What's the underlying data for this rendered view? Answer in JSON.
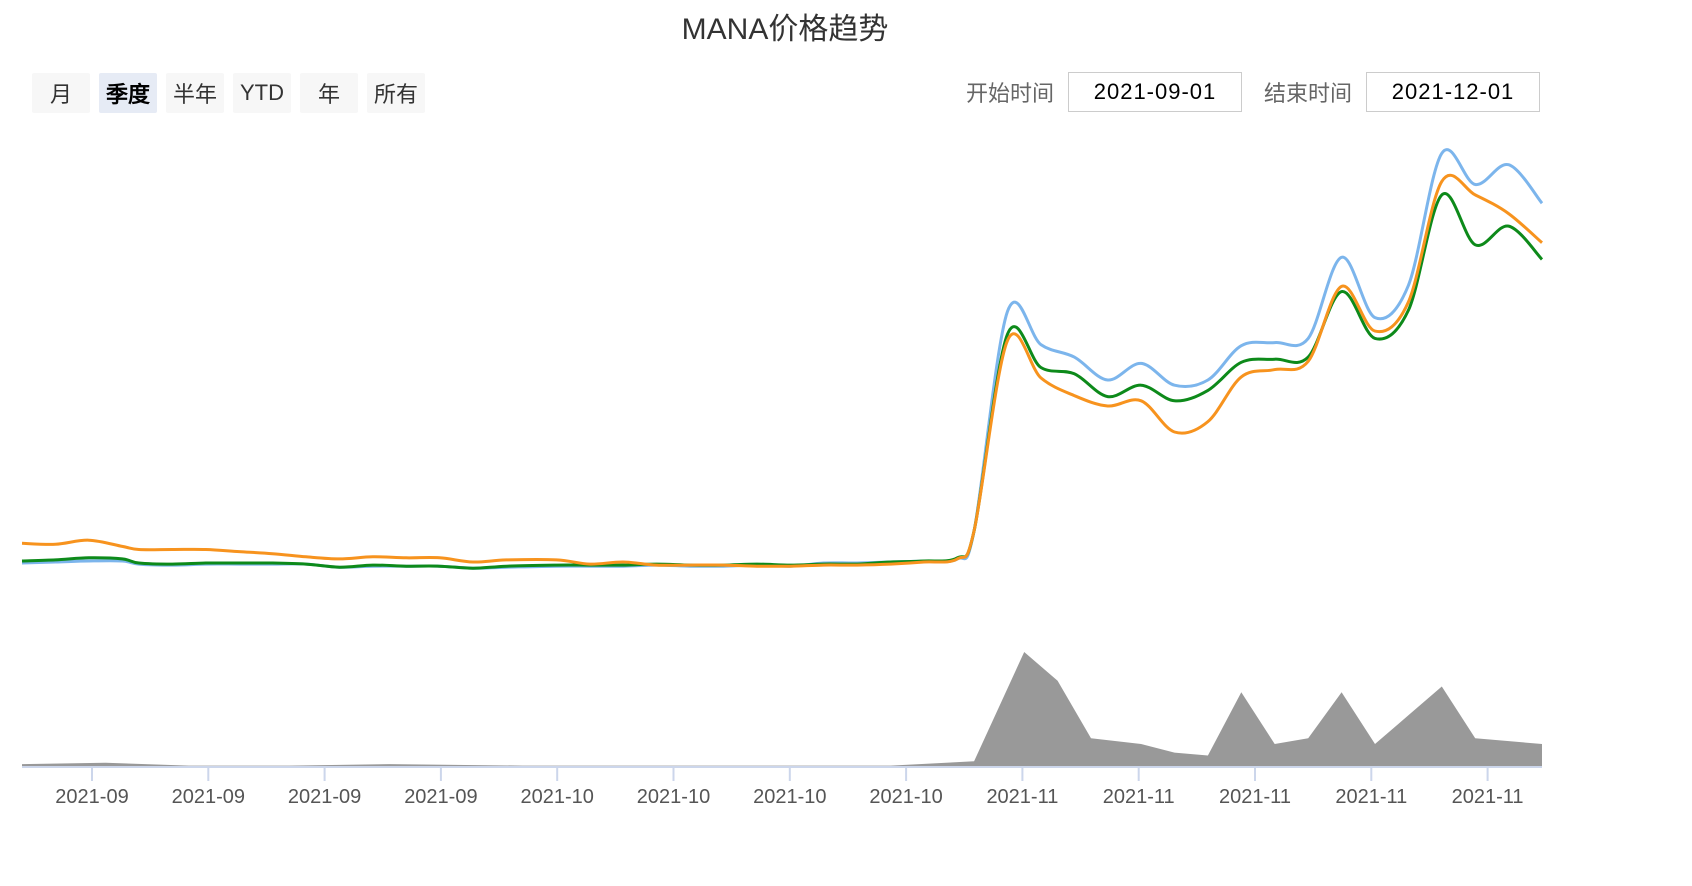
{
  "title": "MANA价格趋势",
  "range_selector": {
    "buttons": [
      {
        "label": "月",
        "active": false
      },
      {
        "label": "季度",
        "active": true
      },
      {
        "label": "半年",
        "active": false
      },
      {
        "label": "YTD",
        "active": false
      },
      {
        "label": "年",
        "active": false
      },
      {
        "label": "所有",
        "active": false
      }
    ]
  },
  "date_range": {
    "start_label": "开始时间",
    "start_value": "2021-09-01",
    "end_label": "结束时间",
    "end_value": "2021-12-01"
  },
  "colors": {
    "series1": "#7cb5ec",
    "series2": "#0d8a1a",
    "series3": "#f7931e",
    "volume": "#999999",
    "axis": "#ccd6eb"
  },
  "chart_data": {
    "type": "line",
    "title": "MANA价格趋势",
    "x_tick_labels": [
      "2021-09",
      "2021-09",
      "2021-09",
      "2021-09",
      "2021-10",
      "2021-10",
      "2021-10",
      "2021-10",
      "2021-11",
      "2021-11",
      "2021-11",
      "2021-11",
      "2021-11"
    ],
    "x_range": [
      "2021-09-01",
      "2021-12-01"
    ],
    "grid": false,
    "legend": "none",
    "series": [
      {
        "color": "#7cb5ec",
        "x": [
          "2021-09-01",
          "2021-09-03",
          "2021-09-05",
          "2021-09-07",
          "2021-09-08",
          "2021-09-10",
          "2021-09-12",
          "2021-09-14",
          "2021-09-16",
          "2021-09-18",
          "2021-09-20",
          "2021-09-22",
          "2021-09-24",
          "2021-09-26",
          "2021-09-28",
          "2021-09-30",
          "2021-10-03",
          "2021-10-05",
          "2021-10-07",
          "2021-10-09",
          "2021-10-11",
          "2021-10-13",
          "2021-10-15",
          "2021-10-17",
          "2021-10-19",
          "2021-10-21",
          "2021-10-23",
          "2021-10-25",
          "2021-10-27",
          "2021-10-28",
          "2021-10-30",
          "2021-11-01",
          "2021-11-03",
          "2021-11-05",
          "2021-11-07",
          "2021-11-09",
          "2021-11-11",
          "2021-11-13",
          "2021-11-15",
          "2021-11-17",
          "2021-11-19",
          "2021-11-21",
          "2021-11-23",
          "2021-11-25",
          "2021-11-27",
          "2021-11-29",
          "2021-12-01"
        ],
        "y": [
          0.74,
          0.75,
          0.76,
          0.76,
          0.73,
          0.72,
          0.73,
          0.73,
          0.73,
          0.73,
          0.7,
          0.71,
          0.71,
          0.71,
          0.69,
          0.7,
          0.71,
          0.71,
          0.71,
          0.72,
          0.71,
          0.71,
          0.72,
          0.71,
          0.74,
          0.74,
          0.75,
          0.76,
          0.78,
          1.05,
          3.16,
          2.84,
          2.72,
          2.5,
          2.66,
          2.45,
          2.5,
          2.83,
          2.86,
          2.9,
          3.68,
          3.1,
          3.41,
          4.68,
          4.38,
          4.57,
          4.2
        ]
      },
      {
        "color": "#0d8a1a",
        "x": [
          "2021-09-01",
          "2021-09-03",
          "2021-09-05",
          "2021-09-07",
          "2021-09-08",
          "2021-09-10",
          "2021-09-12",
          "2021-09-14",
          "2021-09-16",
          "2021-09-18",
          "2021-09-20",
          "2021-09-22",
          "2021-09-24",
          "2021-09-26",
          "2021-09-28",
          "2021-09-30",
          "2021-10-03",
          "2021-10-05",
          "2021-10-07",
          "2021-10-09",
          "2021-10-11",
          "2021-10-13",
          "2021-10-15",
          "2021-10-17",
          "2021-10-19",
          "2021-10-21",
          "2021-10-23",
          "2021-10-25",
          "2021-10-27",
          "2021-10-28",
          "2021-10-30",
          "2021-11-01",
          "2021-11-03",
          "2021-11-05",
          "2021-11-07",
          "2021-11-09",
          "2021-11-11",
          "2021-11-13",
          "2021-11-15",
          "2021-11-17",
          "2021-11-19",
          "2021-11-21",
          "2021-11-23",
          "2021-11-25",
          "2021-11-27",
          "2021-11-29",
          "2021-12-01"
        ],
        "y": [
          0.76,
          0.77,
          0.79,
          0.78,
          0.74,
          0.73,
          0.74,
          0.74,
          0.74,
          0.73,
          0.7,
          0.72,
          0.71,
          0.71,
          0.69,
          0.71,
          0.72,
          0.72,
          0.72,
          0.73,
          0.72,
          0.72,
          0.73,
          0.72,
          0.73,
          0.73,
          0.75,
          0.76,
          0.79,
          1.05,
          2.94,
          2.62,
          2.56,
          2.34,
          2.45,
          2.3,
          2.4,
          2.67,
          2.7,
          2.72,
          3.35,
          2.9,
          3.17,
          4.28,
          3.8,
          3.98,
          3.66
        ]
      },
      {
        "color": "#f7931e",
        "x": [
          "2021-09-01",
          "2021-09-03",
          "2021-09-05",
          "2021-09-07",
          "2021-09-08",
          "2021-09-10",
          "2021-09-12",
          "2021-09-14",
          "2021-09-16",
          "2021-09-18",
          "2021-09-20",
          "2021-09-22",
          "2021-09-24",
          "2021-09-26",
          "2021-09-28",
          "2021-09-30",
          "2021-10-03",
          "2021-10-05",
          "2021-10-07",
          "2021-10-09",
          "2021-10-11",
          "2021-10-13",
          "2021-10-15",
          "2021-10-17",
          "2021-10-19",
          "2021-10-21",
          "2021-10-23",
          "2021-10-25",
          "2021-10-27",
          "2021-10-28",
          "2021-10-30",
          "2021-11-01",
          "2021-11-03",
          "2021-11-05",
          "2021-11-07",
          "2021-11-09",
          "2021-11-11",
          "2021-11-13",
          "2021-11-15",
          "2021-11-17",
          "2021-11-19",
          "2021-11-21",
          "2021-11-23",
          "2021-11-25",
          "2021-11-27",
          "2021-11-29",
          "2021-12-01"
        ],
        "y": [
          0.93,
          0.92,
          0.96,
          0.9,
          0.87,
          0.87,
          0.87,
          0.85,
          0.83,
          0.8,
          0.78,
          0.8,
          0.79,
          0.79,
          0.75,
          0.77,
          0.77,
          0.73,
          0.75,
          0.72,
          0.72,
          0.72,
          0.71,
          0.71,
          0.72,
          0.72,
          0.73,
          0.75,
          0.78,
          1.05,
          2.88,
          2.52,
          2.35,
          2.25,
          2.3,
          2.0,
          2.1,
          2.53,
          2.6,
          2.68,
          3.4,
          2.97,
          3.25,
          4.41,
          4.28,
          4.1,
          3.82
        ]
      }
    ],
    "volume": {
      "type": "area",
      "color": "#999999",
      "x": [
        "2021-09-01",
        "2021-09-06",
        "2021-09-11",
        "2021-09-17",
        "2021-09-23",
        "2021-10-01",
        "2021-10-09",
        "2021-10-17",
        "2021-10-23",
        "2021-10-28",
        "2021-10-31",
        "2021-11-02",
        "2021-11-04",
        "2021-11-07",
        "2021-11-09",
        "2021-11-11",
        "2021-11-13",
        "2021-11-15",
        "2021-11-17",
        "2021-11-19",
        "2021-11-21",
        "2021-11-23",
        "2021-11-25",
        "2021-11-27",
        "2021-12-01"
      ],
      "y": [
        1.0,
        1.5,
        0.5,
        0.5,
        1.0,
        0.5,
        0.5,
        0.5,
        0.5,
        2.0,
        40,
        30,
        10,
        8,
        5,
        4,
        26,
        8,
        10,
        26,
        8,
        18,
        28,
        10,
        8
      ]
    }
  }
}
